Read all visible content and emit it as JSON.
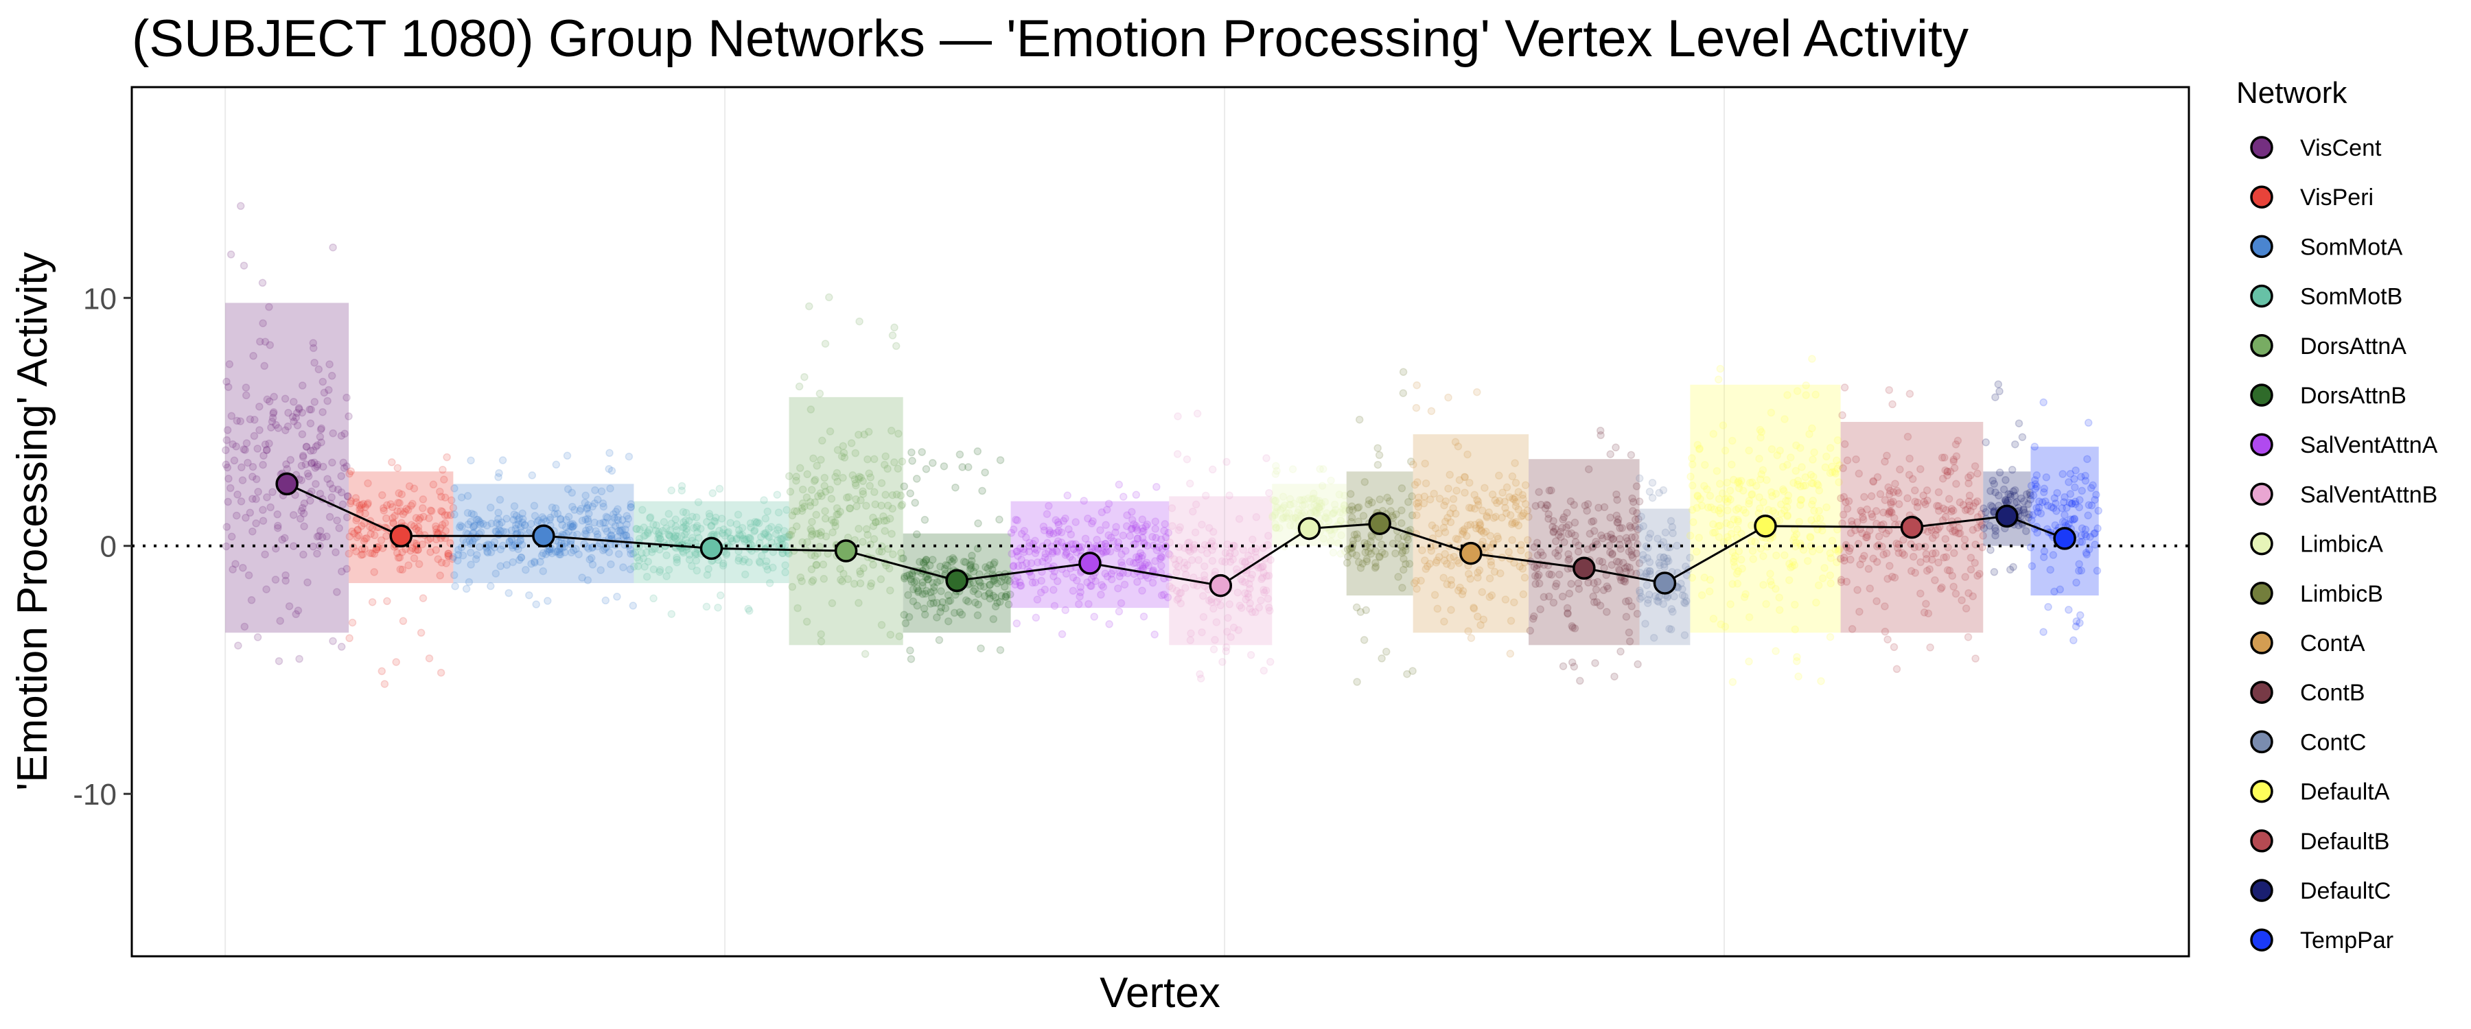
{
  "chart_data": {
    "type": "scatter",
    "title": "(SUBJECT 1080) Group Networks — 'Emotion Processing' Vertex Level Activity",
    "xlabel": "Vertex",
    "ylabel": "'Emotion Processing' Activity",
    "ylim": [
      -16.55,
      18.5
    ],
    "xlim": [
      -3740,
      78600
    ],
    "yticks": [
      10,
      0,
      -10
    ],
    "ytick_labels": [
      "10",
      "0",
      "-10"
    ],
    "xgrid_breaks": [
      0,
      20000,
      40000,
      60000
    ],
    "reference_line_y": 0,
    "grid": true,
    "legend": {
      "title": "Network",
      "placement": "right"
    },
    "networks": [
      {
        "name": "VisCent",
        "color": "#742F80",
        "start": 0,
        "end": 4945,
        "mean": 2.5,
        "core": [
          -3.5,
          9.8
        ],
        "extent": [
          -5.5,
          14.5
        ]
      },
      {
        "name": "VisPeri",
        "color": "#E8433A",
        "start": 4945,
        "end": 9128,
        "mean": 0.4,
        "core": [
          -1.5,
          3.0
        ],
        "extent": [
          -5.8,
          4.0
        ]
      },
      {
        "name": "SomMotA",
        "color": "#4A85D0",
        "start": 9128,
        "end": 16355,
        "mean": 0.4,
        "core": [
          -1.5,
          2.5
        ],
        "extent": [
          -2.5,
          3.8
        ]
      },
      {
        "name": "SomMotB",
        "color": "#67C1A6",
        "start": 16355,
        "end": 22567,
        "mean": -0.1,
        "core": [
          -1.5,
          1.8
        ],
        "extent": [
          -2.8,
          2.5
        ]
      },
      {
        "name": "DorsAttnA",
        "color": "#78AC63",
        "start": 22567,
        "end": 27132,
        "mean": -0.2,
        "core": [
          -4.0,
          6.0
        ],
        "extent": [
          -5.5,
          10.4
        ]
      },
      {
        "name": "DorsAttnB",
        "color": "#2F6B2A",
        "start": 27132,
        "end": 31442,
        "mean": -1.4,
        "core": [
          -3.5,
          0.5
        ],
        "extent": [
          -5.0,
          4.0
        ]
      },
      {
        "name": "SalVentAttnA",
        "color": "#B04AEF",
        "start": 31442,
        "end": 37781,
        "mean": -0.7,
        "core": [
          -2.5,
          1.8
        ],
        "extent": [
          -3.8,
          2.5
        ]
      },
      {
        "name": "SalVentAttnB",
        "color": "#E9A6D2",
        "start": 37781,
        "end": 41902,
        "mean": -1.6,
        "core": [
          -4.0,
          2.0
        ],
        "extent": [
          -5.5,
          6.3
        ]
      },
      {
        "name": "LimbicA",
        "color": "#E6F4B8",
        "start": 41902,
        "end": 44881,
        "mean": 0.7,
        "core": [
          0.0,
          2.5
        ],
        "extent": [
          -0.5,
          3.5
        ]
      },
      {
        "name": "LimbicB",
        "color": "#737E3C",
        "start": 44881,
        "end": 47544,
        "mean": 0.9,
        "core": [
          -2.0,
          3.0
        ],
        "extent": [
          -5.8,
          7.2
        ]
      },
      {
        "name": "ContA",
        "color": "#D39D52",
        "start": 47544,
        "end": 52171,
        "mean": -0.3,
        "core": [
          -3.5,
          4.5
        ],
        "extent": [
          -5.0,
          6.8
        ]
      },
      {
        "name": "ContB",
        "color": "#773A46",
        "start": 52171,
        "end": 56609,
        "mean": -0.9,
        "core": [
          -4.0,
          3.5
        ],
        "extent": [
          -5.5,
          5.0
        ]
      },
      {
        "name": "ContC",
        "color": "#7A8CAF",
        "start": 56609,
        "end": 58637,
        "mean": -1.5,
        "core": [
          -4.0,
          1.5
        ],
        "extent": [
          -5.0,
          2.8
        ]
      },
      {
        "name": "DefaultA",
        "color": "#FEFE5A",
        "start": 58637,
        "end": 64659,
        "mean": 0.8,
        "core": [
          -3.5,
          6.5
        ],
        "extent": [
          -5.5,
          7.8
        ]
      },
      {
        "name": "DefaultB",
        "color": "#B54A52",
        "start": 64659,
        "end": 70365,
        "mean": 0.75,
        "core": [
          -3.5,
          5.0
        ],
        "extent": [
          -5.0,
          6.8
        ]
      },
      {
        "name": "DefaultC",
        "color": "#1A1F70",
        "start": 70365,
        "end": 72266,
        "mean": 1.2,
        "core": [
          0.0,
          3.0
        ],
        "extent": [
          -1.5,
          6.8
        ]
      },
      {
        "name": "TempPar",
        "color": "#1A3AF8",
        "start": 72266,
        "end": 74992,
        "mean": 0.3,
        "core": [
          -2.0,
          4.0
        ],
        "extent": [
          -4.5,
          6.0
        ]
      }
    ]
  }
}
